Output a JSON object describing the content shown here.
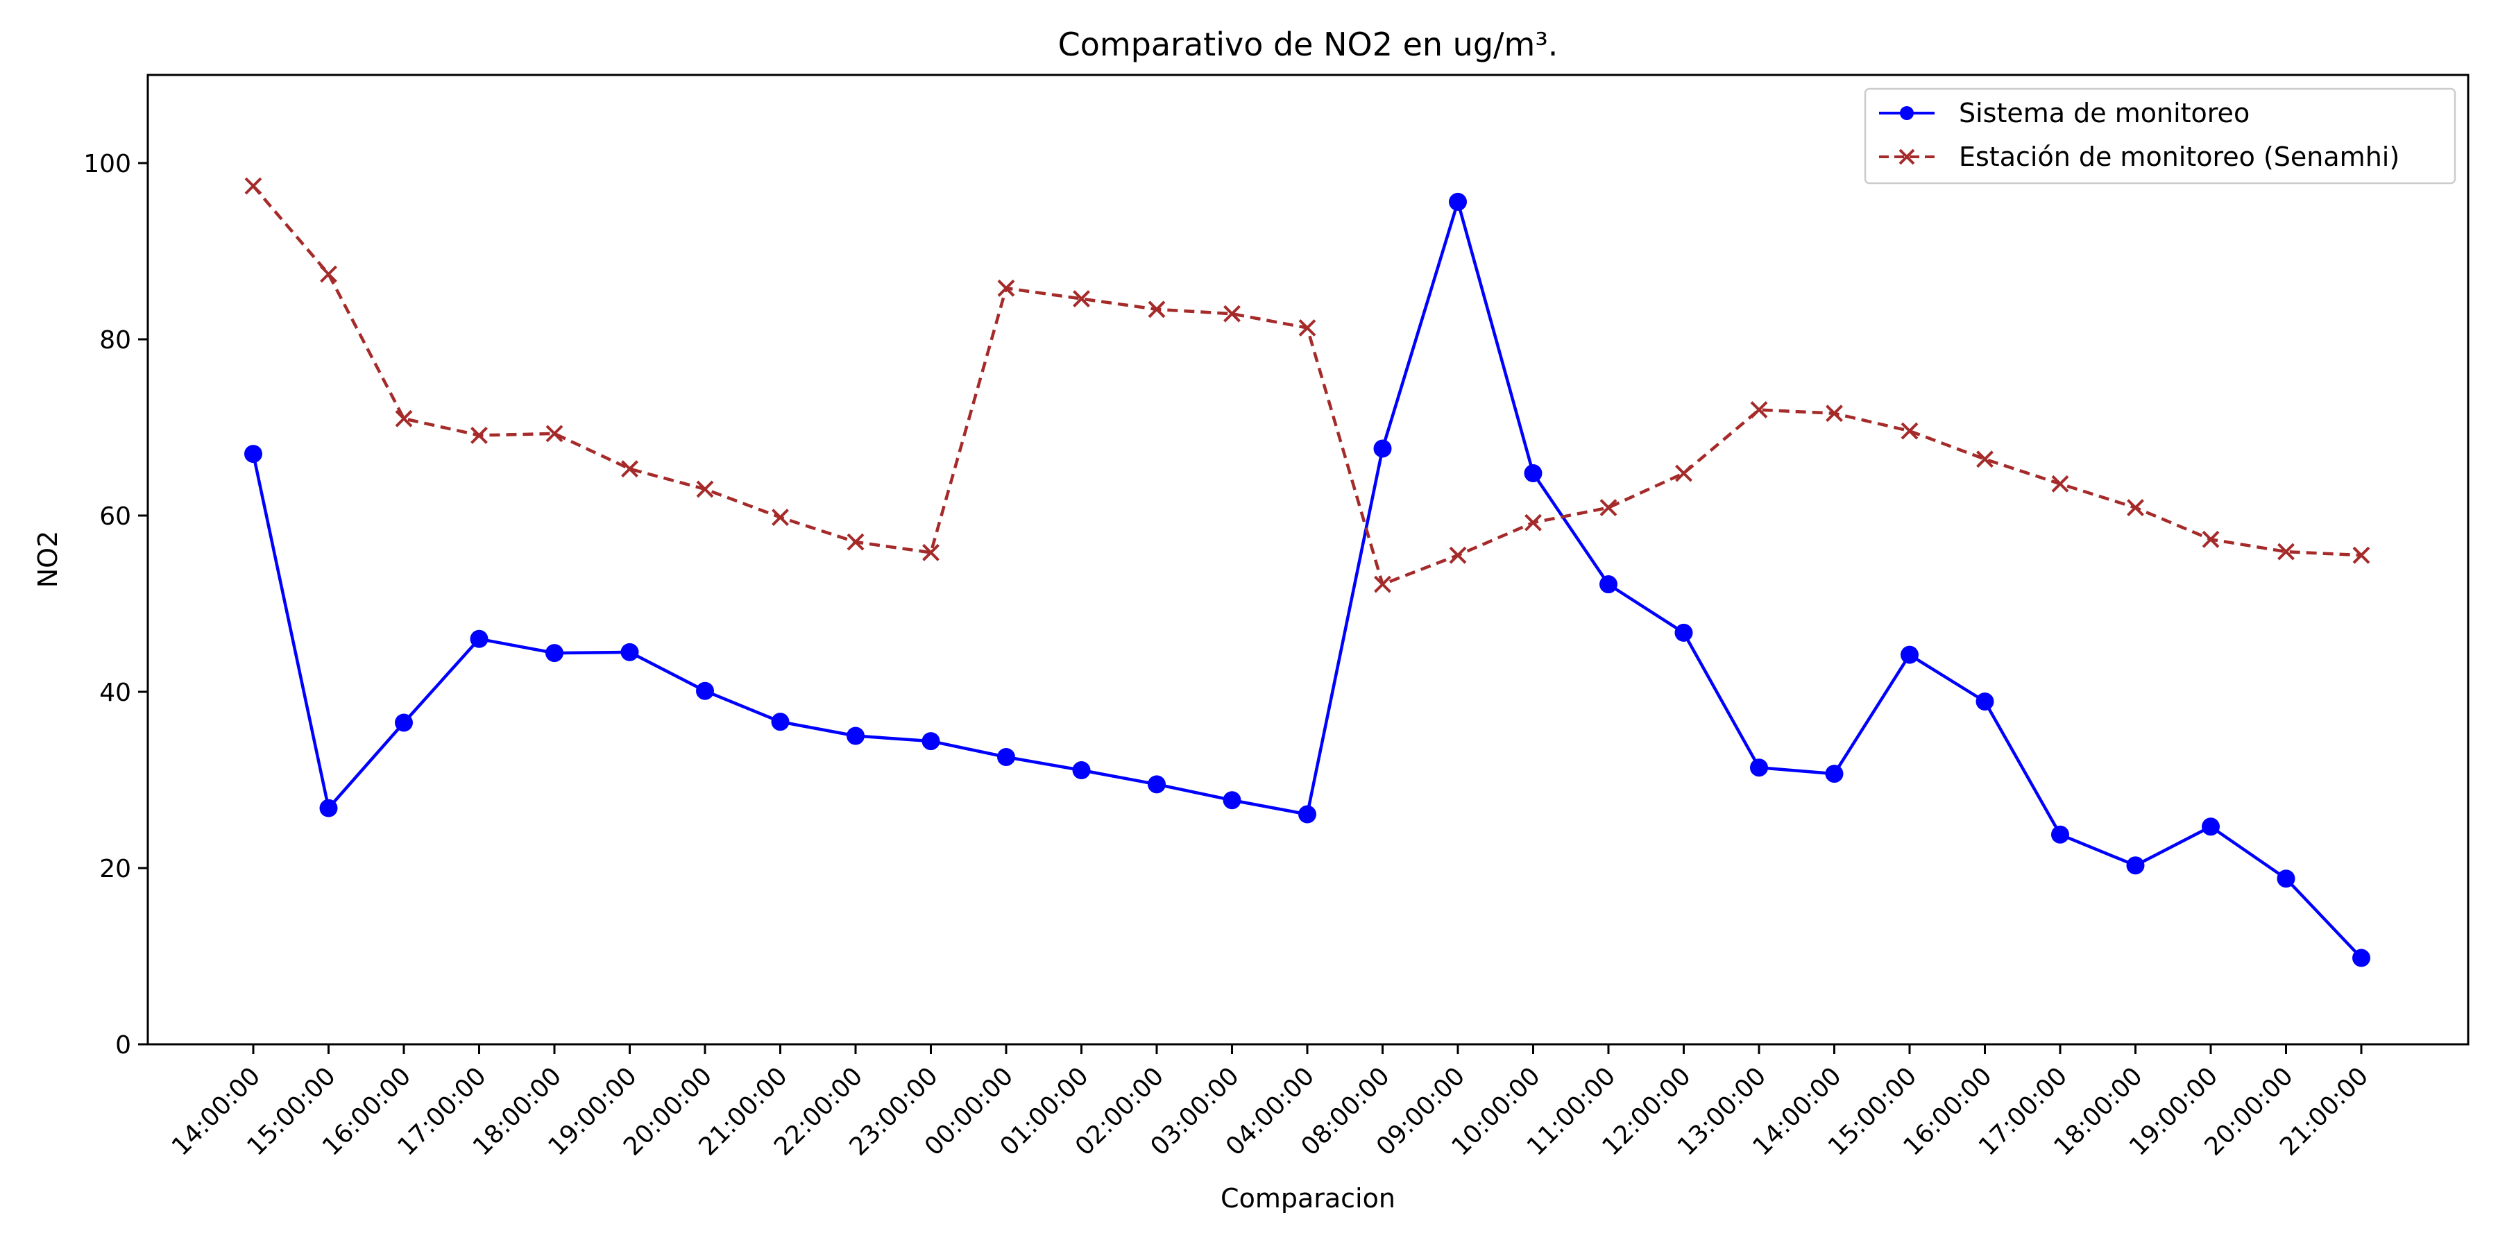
{
  "chart_data": {
    "type": "line",
    "title": "Comparativo de NO2 en ug/m³.",
    "xlabel": "Comparacion",
    "ylabel": "NO2",
    "ylim": [
      0,
      110
    ],
    "yticks": [
      0,
      20,
      40,
      60,
      80,
      100
    ],
    "grid": false,
    "legend_position": "top-right",
    "categories": [
      "14:00:00",
      "15:00:00",
      "16:00:00",
      "17:00:00",
      "18:00:00",
      "19:00:00",
      "20:00:00",
      "21:00:00",
      "22:00:00",
      "23:00:00",
      "00:00:00",
      "01:00:00",
      "02:00:00",
      "03:00:00",
      "04:00:00",
      "08:00:00",
      "09:00:00",
      "10:00:00",
      "11:00:00",
      "12:00:00",
      "13:00:00",
      "14:00:00",
      "15:00:00",
      "16:00:00",
      "17:00:00",
      "18:00:00",
      "19:00:00",
      "20:00:00",
      "21:00:00"
    ],
    "series": [
      {
        "name": "Sistema de monitoreo",
        "color": "#0000ff",
        "line_style": "solid",
        "marker": "circle",
        "values": [
          67.0,
          26.8,
          36.5,
          46.0,
          44.4,
          44.5,
          40.1,
          36.6,
          35.0,
          34.4,
          32.6,
          31.1,
          29.5,
          27.7,
          26.1,
          67.6,
          95.6,
          64.8,
          52.2,
          46.7,
          31.4,
          30.7,
          44.2,
          38.9,
          23.8,
          20.3,
          24.7,
          18.8,
          9.8
        ]
      },
      {
        "name": "Estación de monitoreo (Senamhi)",
        "color": "#a52a2a",
        "line_style": "dashed",
        "marker": "x",
        "values": [
          97.4,
          87.4,
          71.0,
          69.1,
          69.3,
          65.3,
          63.0,
          59.8,
          57.0,
          55.8,
          85.8,
          84.6,
          83.4,
          82.9,
          81.3,
          52.2,
          55.5,
          59.2,
          60.9,
          64.8,
          72.0,
          71.6,
          69.6,
          66.4,
          63.6,
          60.9,
          57.3,
          55.9,
          55.5
        ]
      }
    ]
  }
}
